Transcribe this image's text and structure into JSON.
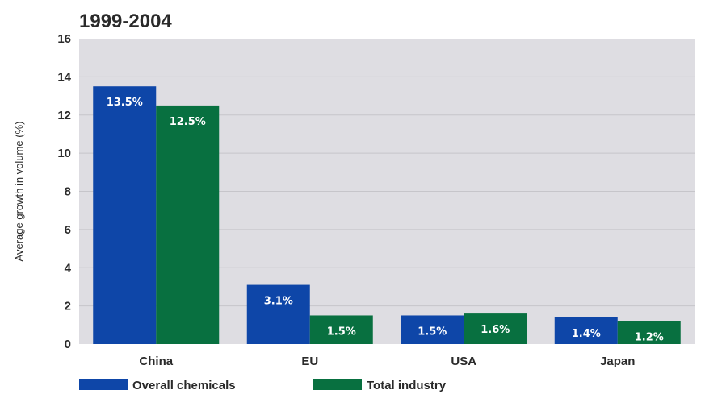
{
  "chart_data": {
    "type": "bar",
    "title": "1999-2004",
    "ylabel": "Average growth in volume (%)",
    "xlabel": "",
    "ylim": [
      0,
      16
    ],
    "yticks": [
      0,
      2,
      4,
      6,
      8,
      10,
      12,
      14,
      16
    ],
    "grid": true,
    "legend_position": "bottom",
    "categories": [
      "China",
      "EU",
      "USA",
      "Japan"
    ],
    "series": [
      {
        "name": "Overall chemicals",
        "color": "#0e46a8",
        "values": [
          13.5,
          3.1,
          1.5,
          1.4
        ],
        "labels": [
          "13.5%",
          "3.1%",
          "1.5%",
          "1.4%"
        ]
      },
      {
        "name": "Total industry",
        "color": "#087040",
        "values": [
          12.5,
          1.5,
          1.6,
          1.2
        ],
        "labels": [
          "12.5%",
          "1.5%",
          "1.6%",
          "1.2%"
        ]
      }
    ],
    "background_color": "#dedde2",
    "grid_color": "#c6c5ca"
  }
}
